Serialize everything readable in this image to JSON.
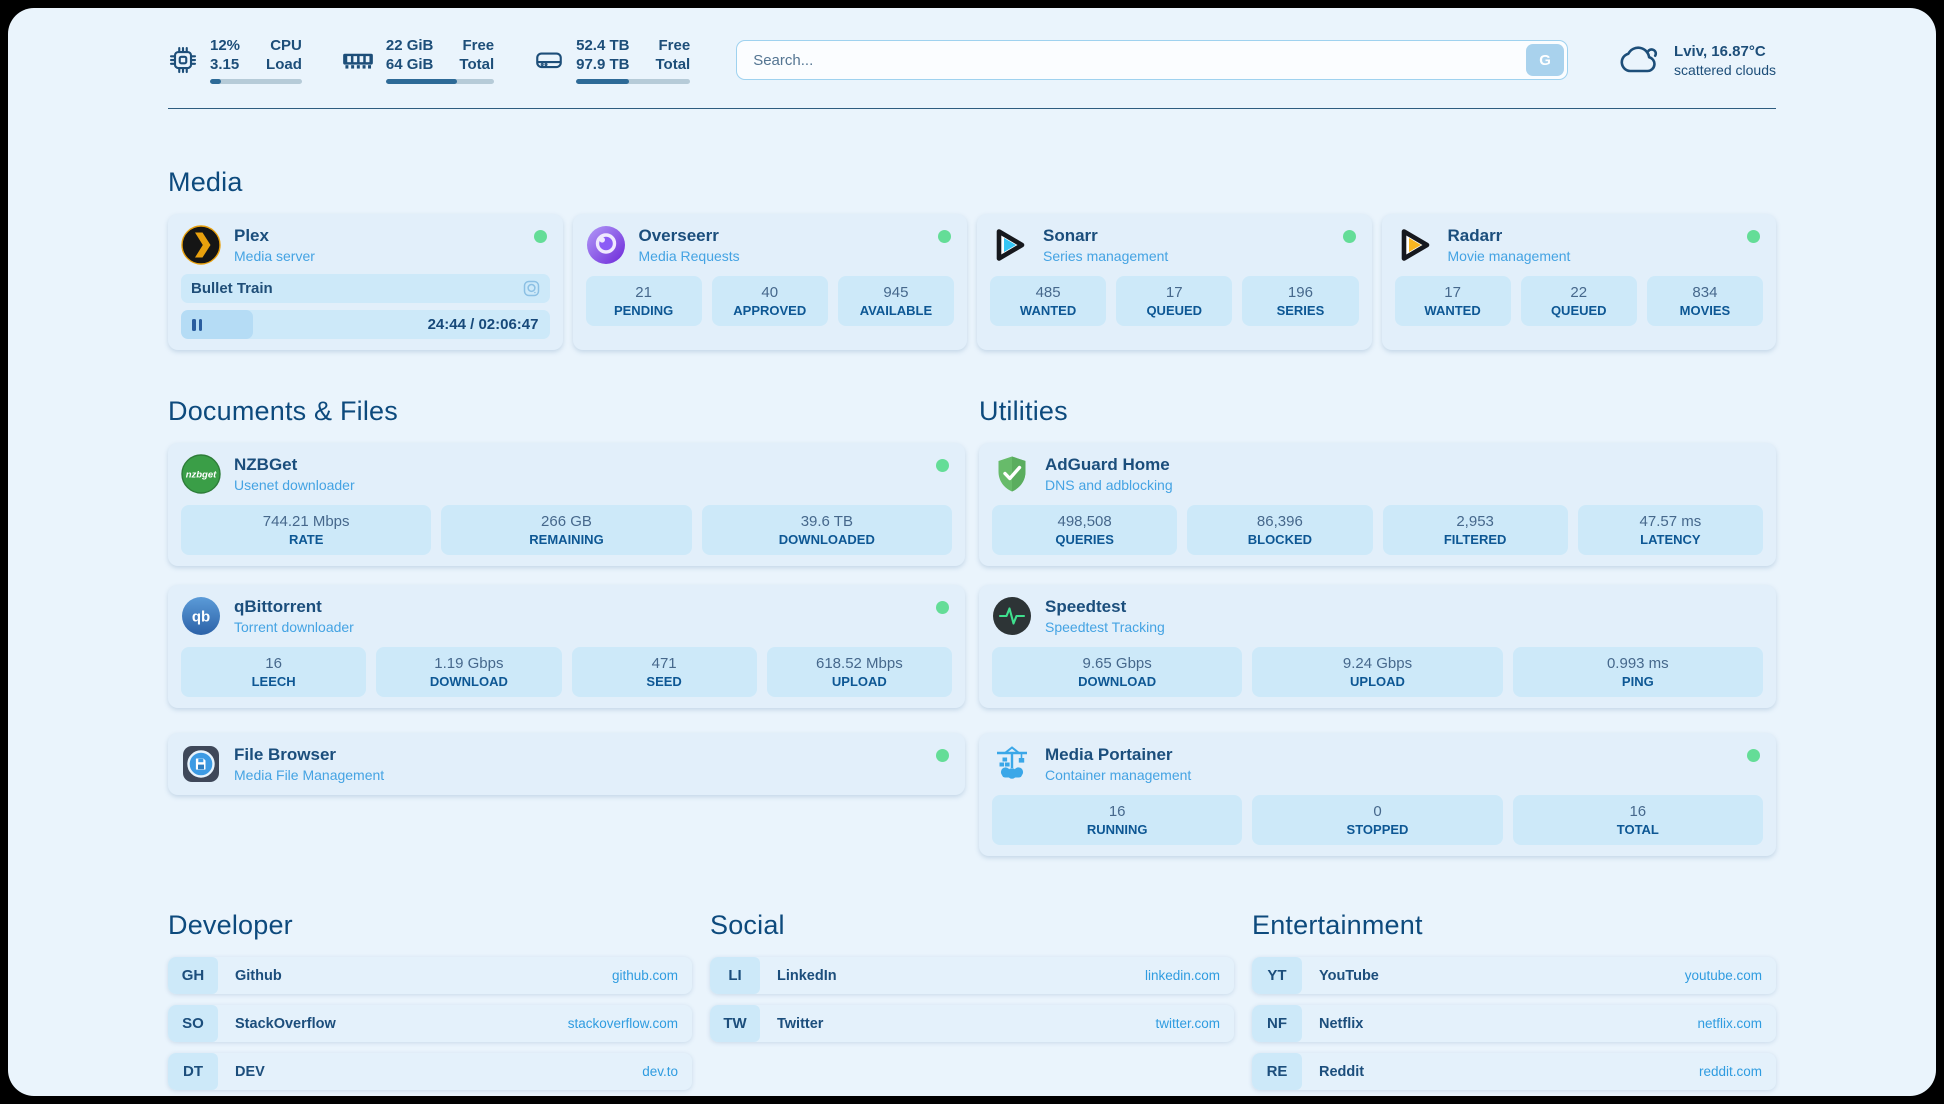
{
  "header": {
    "widgets": [
      {
        "icon": "cpu-chip-icon",
        "values": [
          "12%",
          "3.15"
        ],
        "labels": [
          "CPU",
          "Load"
        ],
        "progress": 12
      },
      {
        "icon": "ram-icon",
        "values": [
          "22 GiB",
          "64 GiB"
        ],
        "labels": [
          "Free",
          "Total"
        ],
        "progress": 66
      },
      {
        "icon": "disk-icon",
        "values": [
          "52.4 TB",
          "97.9 TB"
        ],
        "labels": [
          "Free",
          "Total"
        ],
        "progress": 46
      }
    ],
    "search": {
      "placeholder": "Search...",
      "button": "G"
    },
    "weather": {
      "location_temp": "Lviv, 16.87°C",
      "condition": "scattered clouds"
    }
  },
  "sections": {
    "media": {
      "title": "Media",
      "plex": {
        "name": "Plex",
        "subtitle": "Media server",
        "online": true,
        "now_playing": "Bullet Train",
        "time": "24:44 / 02:06:47",
        "progress": 19.5
      },
      "overseerr": {
        "name": "Overseerr",
        "subtitle": "Media Requests",
        "online": true,
        "stats": [
          {
            "value": "21",
            "label": "PENDING"
          },
          {
            "value": "40",
            "label": "APPROVED"
          },
          {
            "value": "945",
            "label": "AVAILABLE"
          }
        ]
      },
      "sonarr": {
        "name": "Sonarr",
        "subtitle": "Series management",
        "online": true,
        "stats": [
          {
            "value": "485",
            "label": "WANTED"
          },
          {
            "value": "17",
            "label": "QUEUED"
          },
          {
            "value": "196",
            "label": "SERIES"
          }
        ]
      },
      "radarr": {
        "name": "Radarr",
        "subtitle": "Movie management",
        "online": true,
        "stats": [
          {
            "value": "17",
            "label": "WANTED"
          },
          {
            "value": "22",
            "label": "QUEUED"
          },
          {
            "value": "834",
            "label": "MOVIES"
          }
        ]
      }
    },
    "documents": {
      "title": "Documents & Files",
      "nzbget": {
        "name": "NZBGet",
        "subtitle": "Usenet downloader",
        "online": true,
        "stats": [
          {
            "value": "744.21 Mbps",
            "label": "RATE"
          },
          {
            "value": "266 GB",
            "label": "REMAINING"
          },
          {
            "value": "39.6 TB",
            "label": "DOWNLOADED"
          }
        ]
      },
      "qbittorrent": {
        "name": "qBittorrent",
        "subtitle": "Torrent downloader",
        "online": true,
        "stats": [
          {
            "value": "16",
            "label": "LEECH"
          },
          {
            "value": "1.19 Gbps",
            "label": "DOWNLOAD"
          },
          {
            "value": "471",
            "label": "SEED"
          },
          {
            "value": "618.52 Mbps",
            "label": "UPLOAD"
          }
        ]
      },
      "filebrowser": {
        "name": "File Browser",
        "subtitle": "Media File Management",
        "online": true
      }
    },
    "utilities": {
      "title": "Utilities",
      "adguard": {
        "name": "AdGuard Home",
        "subtitle": "DNS and adblocking",
        "online": false,
        "stats": [
          {
            "value": "498,508",
            "label": "QUERIES"
          },
          {
            "value": "86,396",
            "label": "BLOCKED"
          },
          {
            "value": "2,953",
            "label": "FILTERED"
          },
          {
            "value": "47.57 ms",
            "label": "LATENCY"
          }
        ]
      },
      "speedtest": {
        "name": "Speedtest",
        "subtitle": "Speedtest Tracking",
        "online": false,
        "stats": [
          {
            "value": "9.65 Gbps",
            "label": "DOWNLOAD"
          },
          {
            "value": "9.24 Gbps",
            "label": "UPLOAD"
          },
          {
            "value": "0.993 ms",
            "label": "PING"
          }
        ]
      },
      "portainer": {
        "name": "Media Portainer",
        "subtitle": "Container management",
        "online": true,
        "stats": [
          {
            "value": "16",
            "label": "RUNNING"
          },
          {
            "value": "0",
            "label": "STOPPED"
          },
          {
            "value": "16",
            "label": "TOTAL"
          }
        ]
      }
    },
    "developer": {
      "title": "Developer",
      "links": [
        {
          "abbr": "GH",
          "name": "Github",
          "url": "github.com"
        },
        {
          "abbr": "SO",
          "name": "StackOverflow",
          "url": "stackoverflow.com"
        },
        {
          "abbr": "DT",
          "name": "DEV",
          "url": "dev.to"
        }
      ]
    },
    "social": {
      "title": "Social",
      "links": [
        {
          "abbr": "LI",
          "name": "LinkedIn",
          "url": "linkedin.com"
        },
        {
          "abbr": "TW",
          "name": "Twitter",
          "url": "twitter.com"
        }
      ]
    },
    "entertainment": {
      "title": "Entertainment",
      "links": [
        {
          "abbr": "YT",
          "name": "YouTube",
          "url": "youtube.com"
        },
        {
          "abbr": "NF",
          "name": "Netflix",
          "url": "netflix.com"
        },
        {
          "abbr": "RE",
          "name": "Reddit",
          "url": "reddit.com"
        }
      ]
    }
  },
  "colors": {
    "accent_link": "#2f9ce0",
    "status_online": "#64dd97",
    "navy": "#1d4e79"
  }
}
